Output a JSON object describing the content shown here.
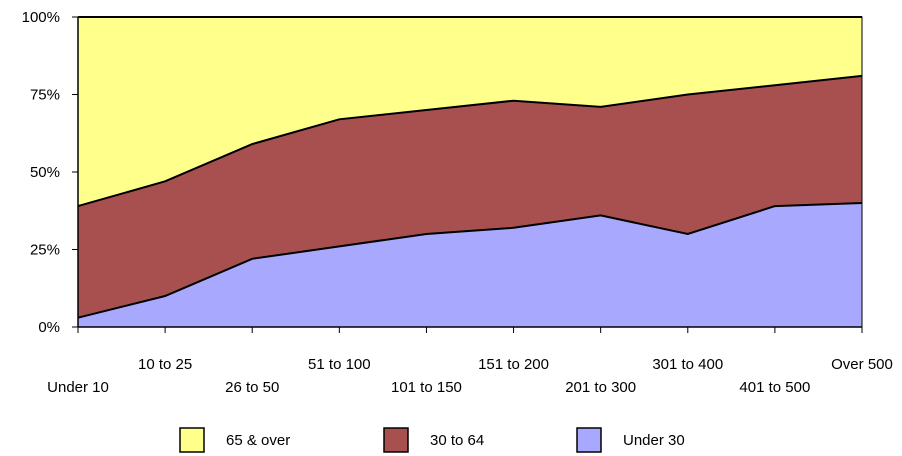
{
  "chart_data": {
    "type": "area",
    "stacked": true,
    "normalized": true,
    "categories": [
      "Under 10",
      "10 to 25",
      "26 to 50",
      "51 to 100",
      "101 to 150",
      "151 to 200",
      "201 to 300",
      "301 to 400",
      "401 to 500",
      "Over 500"
    ],
    "ylim": [
      0,
      100
    ],
    "yticks": [
      "0%",
      "25%",
      "50%",
      "75%",
      "100%"
    ],
    "grid": false,
    "legend_position": "bottom",
    "series": [
      {
        "name": "Under 30",
        "color": "#a8a8ff",
        "values": [
          3,
          10,
          22,
          26,
          30,
          32,
          36,
          30,
          39,
          40
        ]
      },
      {
        "name": "30 to 64",
        "color": "#a85050",
        "values": [
          36,
          37,
          37,
          41,
          40,
          41,
          35,
          45,
          39,
          41
        ]
      },
      {
        "name": "65 & over",
        "color": "#ffff8c",
        "values": [
          61,
          53,
          41,
          33,
          30,
          27,
          29,
          25,
          22,
          19
        ]
      }
    ],
    "legend_order": [
      "65 & over",
      "30 to 64",
      "Under 30"
    ]
  }
}
